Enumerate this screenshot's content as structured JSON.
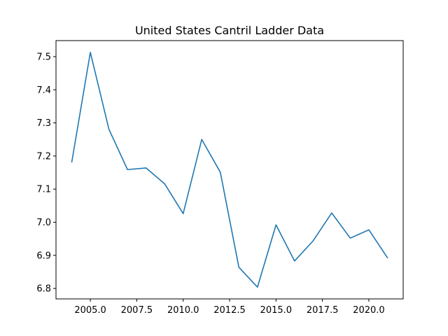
{
  "chart_data": {
    "type": "line",
    "title": "United States Cantril Ladder Data",
    "xlabel": "",
    "ylabel": "",
    "x": [
      2004,
      2005,
      2006,
      2007,
      2008,
      2009,
      2010,
      2011,
      2012,
      2013,
      2014,
      2015,
      2016,
      2017,
      2018,
      2019,
      2020,
      2021
    ],
    "series": [
      {
        "name": "",
        "color": "#1f77b4",
        "values": [
          7.182,
          7.513,
          7.281,
          7.159,
          7.164,
          7.116,
          7.026,
          7.25,
          7.151,
          6.864,
          6.804,
          6.992,
          6.883,
          6.944,
          7.028,
          6.952,
          6.977,
          6.893
        ]
      }
    ],
    "xlim": [
      2003.15,
      2021.85
    ],
    "ylim": [
      6.7685,
      7.5485
    ],
    "x_ticks": [
      2005,
      2007.5,
      2010,
      2012.5,
      2015,
      2017.5,
      2020
    ],
    "x_tick_labels": [
      "2005.0",
      "2007.5",
      "2010.0",
      "2012.5",
      "2015.0",
      "2017.5",
      "2020.0"
    ],
    "y_ticks": [
      6.8,
      6.9,
      7.0,
      7.1,
      7.2,
      7.3,
      7.4,
      7.5
    ],
    "y_tick_labels": [
      "6.8",
      "6.9",
      "7.0",
      "7.1",
      "7.2",
      "7.3",
      "7.4",
      "7.5"
    ],
    "grid": false,
    "legend": "none"
  }
}
